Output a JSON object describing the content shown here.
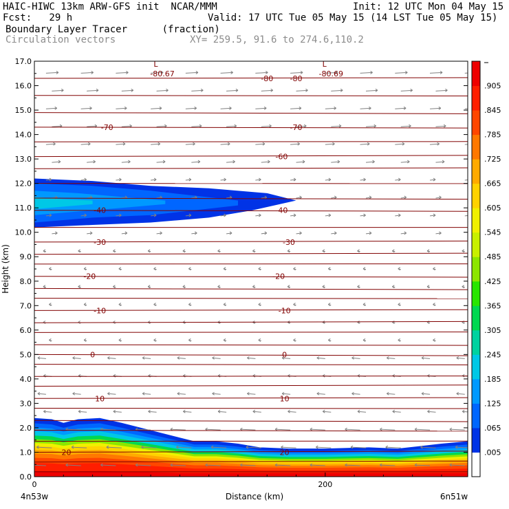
{
  "header": {
    "title_left": "HAIC-HIWC 13km ARW-GFS init  NCAR/MMM",
    "init": "Init: 12 UTC Mon 04 May 15",
    "fcst": "Fcst:   29 h",
    "valid": "Valid: 17 UTC Tue 05 May 15 (14 LST Tue 05 May 15)",
    "field": "Boundary Layer Tracer      (fraction)",
    "field2": "Circulation vectors",
    "xy": "XY= 259.5, 91.6 to 274.6,110.2"
  },
  "chart_data": {
    "type": "heatmap",
    "title": "Boundary Layer Tracer",
    "units": "fraction",
    "xlabel": "Distance (km)",
    "ylabel": "Height (km)",
    "x_tick_values": [
      0,
      200
    ],
    "x_tick_labels": [
      "0",
      "200"
    ],
    "x_end_labels": [
      "4n53w",
      "6n51w"
    ],
    "xlim": [
      0,
      298
    ],
    "ylim": [
      0,
      17
    ],
    "y_ticks": [
      "0.0",
      "1.0",
      "2.0",
      "3.0",
      "4.0",
      "5.0",
      "6.0",
      "7.0",
      "8.0",
      "9.0",
      "10.0",
      "11.0",
      "12.0",
      "13.0",
      "14.0",
      "15.0",
      "16.0",
      "17.0"
    ],
    "colorbar": {
      "labels": [
        ".005",
        ".065",
        ".125",
        ".185",
        ".245",
        ".305",
        ".365",
        ".425",
        ".485",
        ".545",
        ".605",
        ".665",
        ".725",
        ".785",
        ".845",
        ".905"
      ],
      "colors": [
        "#ffffff",
        "#0033e6",
        "#0066ff",
        "#0099ff",
        "#00c8e6",
        "#00d2a0",
        "#00d850",
        "#28e600",
        "#8ce600",
        "#c8f000",
        "#f0f000",
        "#ffd200",
        "#ffaa00",
        "#ff7800",
        "#ff4600",
        "#ff1e00",
        "#ee0000"
      ]
    },
    "isotherms": [
      {
        "label": "-80.67",
        "y": 16.5
      },
      {
        "label": "-80.69",
        "y": 16.5
      },
      {
        "label": "-80",
        "y": 16.3
      },
      {
        "label": "-70",
        "y": 14.3
      },
      {
        "label": "-60",
        "y": 13.1
      },
      {
        "label": "-40",
        "y": 10.9
      },
      {
        "label": "-30",
        "y": 9.6
      },
      {
        "label": "-20",
        "y": 8.2
      },
      {
        "label": "-10",
        "y": 6.8
      },
      {
        "label": "0",
        "y": 5.0
      },
      {
        "label": "10",
        "y": 3.2
      },
      {
        "label": "20",
        "y": 1.0
      }
    ],
    "low_markers": [
      "L",
      "L"
    ],
    "tracer_features": [
      {
        "name": "upper layer",
        "x_start": 0,
        "x_end": 180,
        "y_bottom": 10.2,
        "y_top": 12.2,
        "peak_fraction": 0.125
      },
      {
        "name": "boundary layer",
        "x_start": 0,
        "x_end": 298,
        "y_bottom": 0.0,
        "y_top": 2.4,
        "peak_fraction": 0.905
      }
    ]
  }
}
